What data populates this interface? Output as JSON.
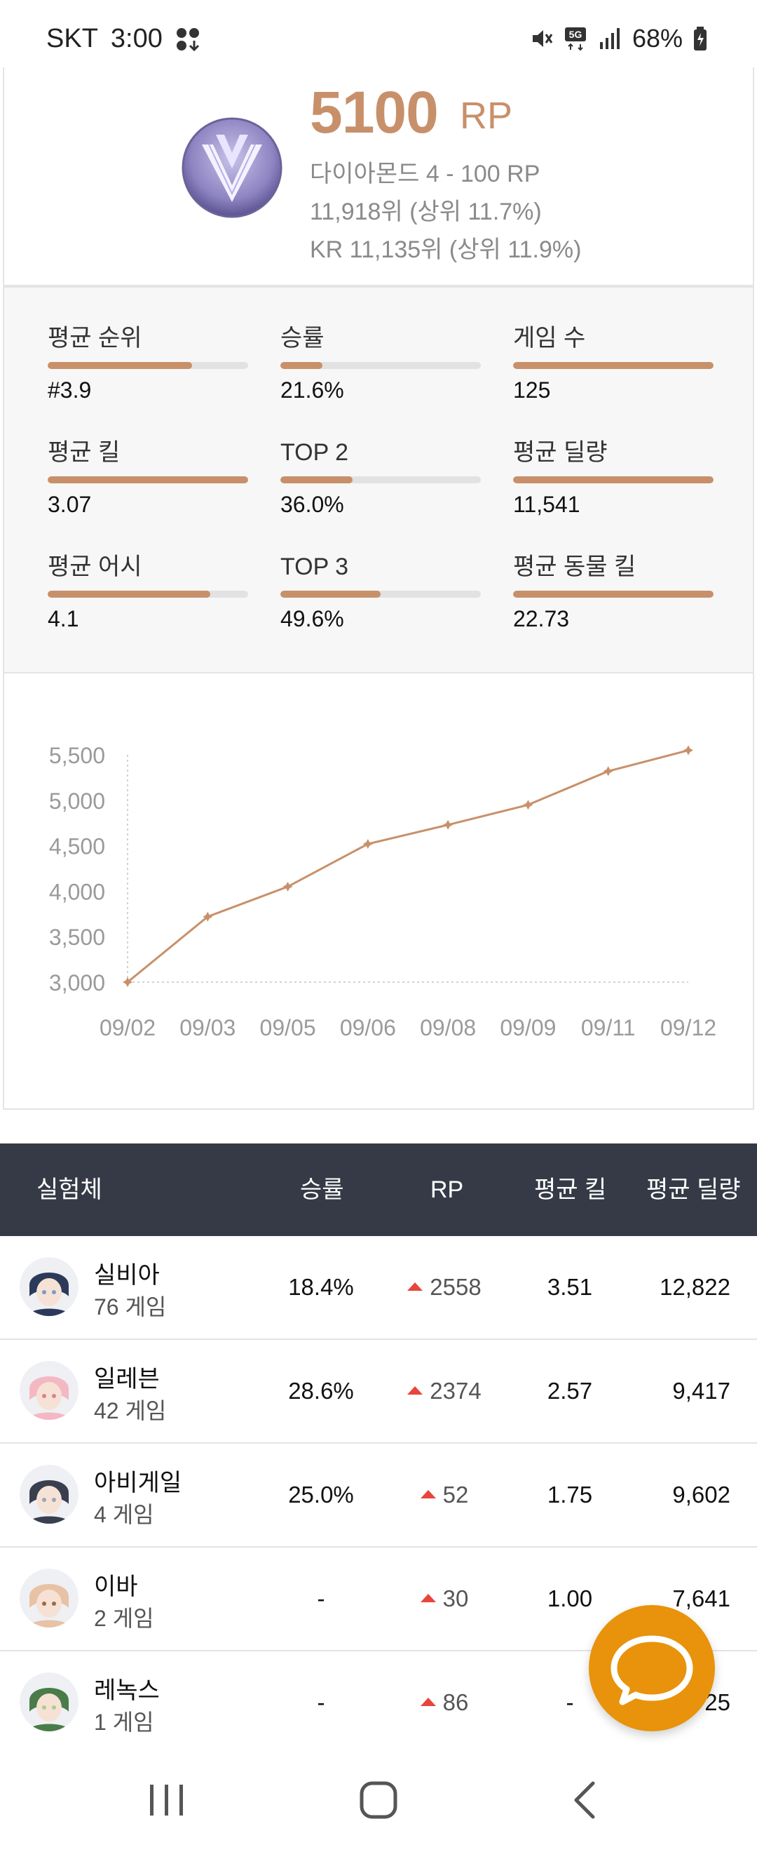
{
  "status_bar": {
    "carrier": "SKT",
    "time": "3:00",
    "network": "5G",
    "battery": "68%",
    "icons": [
      "grid-icon",
      "mute-icon",
      "signal-icon",
      "battery-icon"
    ]
  },
  "rank": {
    "rp_value": "5100",
    "rp_unit": "RP",
    "tier": "다이아몬드 4 - 100 RP",
    "rank": "11,918위 (상위 11.7%)",
    "kr_rank": "KR 11,135위 (상위 11.9%)"
  },
  "stats": [
    {
      "label": "평균 순위",
      "value": "#3.9",
      "fill": 0.72
    },
    {
      "label": "승률",
      "value": "21.6%",
      "fill": 0.21
    },
    {
      "label": "게임 수",
      "value": "125",
      "fill": 1.0
    },
    {
      "label": "평균 킬",
      "value": "3.07",
      "fill": 1.0
    },
    {
      "label": "TOP 2",
      "value": "36.0%",
      "fill": 0.36
    },
    {
      "label": "평균 딜량",
      "value": "11,541",
      "fill": 1.0
    },
    {
      "label": "평균 어시",
      "value": "4.1",
      "fill": 0.81
    },
    {
      "label": "TOP 3",
      "value": "49.6%",
      "fill": 0.5
    },
    {
      "label": "평균 동물 킬",
      "value": "22.73",
      "fill": 1.0
    }
  ],
  "chart_data": {
    "type": "line",
    "x": [
      "09/02",
      "09/03",
      "09/05",
      "09/06",
      "09/08",
      "09/09",
      "09/11",
      "09/12"
    ],
    "series": [
      {
        "values": [
          3000,
          3720,
          4050,
          4520,
          4730,
          4950,
          5320,
          5550
        ]
      }
    ],
    "y_ticks": [
      "5,500",
      "5,000",
      "4,500",
      "4,000",
      "3,500",
      "3,000"
    ],
    "ylim": [
      3000,
      5500
    ],
    "grid": false,
    "color": "#c8906a"
  },
  "table": {
    "headers": {
      "name": "실험체",
      "winrate": "승률",
      "rp": "RP",
      "kills": "평균 킬",
      "damage": "평균 딜량"
    },
    "rows": [
      {
        "name": "실비아",
        "games": "76 게임",
        "winrate": "18.4%",
        "rp": "2558",
        "kills": "3.51",
        "damage": "12,822"
      },
      {
        "name": "일레븐",
        "games": "42 게임",
        "winrate": "28.6%",
        "rp": "2374",
        "kills": "2.57",
        "damage": "9,417"
      },
      {
        "name": "아비게일",
        "games": "4 게임",
        "winrate": "25.0%",
        "rp": "52",
        "kills": "1.75",
        "damage": "9,602"
      },
      {
        "name": "이바",
        "games": "2 게임",
        "winrate": "-",
        "rp": "30",
        "kills": "1.00",
        "damage": "7,641"
      },
      {
        "name": "레녹스",
        "games": "1 게임",
        "winrate": "-",
        "rp": "86",
        "kills": "-",
        "damage": "25"
      }
    ]
  },
  "colors": {
    "accent": "#c8906a",
    "header_bg": "#353a46",
    "fab": "#e8930b",
    "rp_up": "#e8453c"
  }
}
